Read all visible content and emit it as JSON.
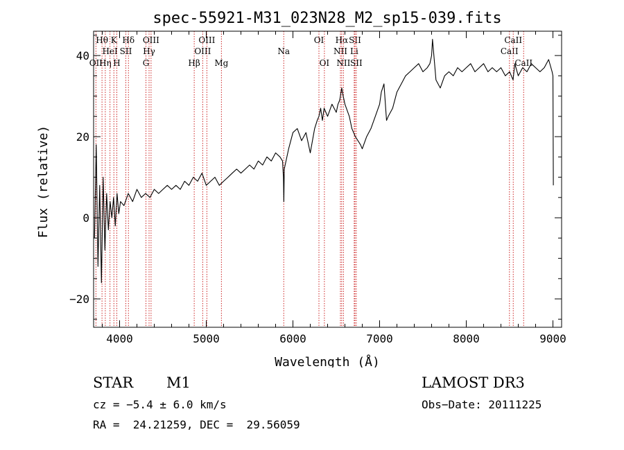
{
  "chart_data": {
    "type": "line",
    "title": "spec-55921-M31_023N28_M2_sp15-039.fits",
    "xlabel": "Wavelength (Å)",
    "ylabel": "Flux (relative)",
    "xlim": [
      3700,
      9100
    ],
    "ylim": [
      -27,
      46
    ],
    "xticks": [
      4000,
      5000,
      6000,
      7000,
      8000,
      9000
    ],
    "yticks": [
      -20,
      0,
      20,
      40
    ],
    "xminor_step": 200,
    "yminor_step": 5,
    "grid": false,
    "series": [
      {
        "name": "spectrum",
        "color": "#000000",
        "x": [
          3710,
          3730,
          3750,
          3770,
          3790,
          3810,
          3830,
          3850,
          3870,
          3890,
          3910,
          3930,
          3950,
          3970,
          3990,
          4010,
          4050,
          4100,
          4150,
          4200,
          4250,
          4300,
          4350,
          4400,
          4450,
          4500,
          4550,
          4600,
          4650,
          4700,
          4750,
          4800,
          4850,
          4900,
          4950,
          5000,
          5050,
          5100,
          5150,
          5200,
          5250,
          5300,
          5350,
          5400,
          5450,
          5500,
          5550,
          5600,
          5650,
          5700,
          5750,
          5800,
          5850,
          5880,
          5890,
          5895,
          5900,
          5920,
          5950,
          6000,
          6050,
          6100,
          6150,
          6200,
          6250,
          6280,
          6300,
          6320,
          6340,
          6360,
          6400,
          6450,
          6500,
          6520,
          6540,
          6563,
          6580,
          6600,
          6650,
          6680,
          6700,
          6720,
          6750,
          6780,
          6800,
          6850,
          6900,
          6950,
          7000,
          7020,
          7050,
          7080,
          7100,
          7150,
          7200,
          7250,
          7300,
          7350,
          7400,
          7450,
          7500,
          7550,
          7580,
          7600,
          7610,
          7630,
          7650,
          7700,
          7750,
          7800,
          7850,
          7900,
          7950,
          8000,
          8050,
          8100,
          8150,
          8200,
          8250,
          8300,
          8350,
          8400,
          8450,
          8500,
          8540,
          8560,
          8600,
          8650,
          8700,
          8750,
          8800,
          8850,
          8900,
          8950,
          8990,
          9000,
          9005
        ],
        "y": [
          -5,
          18,
          -12,
          8,
          -16,
          10,
          -8,
          6,
          -3,
          4,
          0,
          5,
          -2,
          6,
          1,
          4,
          3,
          6,
          4,
          7,
          5,
          6,
          5,
          7,
          6,
          7,
          8,
          7,
          8,
          7,
          9,
          8,
          10,
          9,
          11,
          8,
          9,
          10,
          8,
          9,
          10,
          11,
          12,
          11,
          12,
          13,
          12,
          14,
          13,
          15,
          14,
          16,
          15,
          14,
          10,
          4,
          12,
          14,
          17,
          21,
          22,
          19,
          21,
          16,
          22,
          24,
          25,
          27,
          24,
          27,
          25,
          28,
          26,
          28,
          29,
          32,
          30,
          28,
          25,
          22,
          21,
          20,
          19,
          18,
          17,
          20,
          22,
          25,
          28,
          31,
          33,
          24,
          25,
          27,
          31,
          33,
          35,
          36,
          37,
          38,
          36,
          37,
          38,
          40,
          44,
          39,
          34,
          32,
          35,
          36,
          35,
          37,
          36,
          37,
          38,
          36,
          37,
          38,
          36,
          37,
          36,
          37,
          35,
          36,
          34,
          38,
          35,
          37,
          36,
          38,
          37,
          36,
          37,
          39,
          36,
          35,
          8
        ]
      }
    ],
    "emission_lines": [
      {
        "label": "OII",
        "wavelength": 3727,
        "row": 3
      },
      {
        "label": "Hθ",
        "wavelength": 3797,
        "row": 1
      },
      {
        "label": "Hη",
        "wavelength": 3835,
        "row": 3
      },
      {
        "label": "HeI",
        "wavelength": 3889,
        "row": 2
      },
      {
        "label": "K",
        "wavelength": 3934,
        "row": 1
      },
      {
        "label": "H",
        "wavelength": 3968,
        "row": 3
      },
      {
        "label": "SII",
        "wavelength": 4072,
        "row": 2
      },
      {
        "label": "Hδ",
        "wavelength": 4102,
        "row": 1
      },
      {
        "label": "G",
        "wavelength": 4304,
        "row": 3
      },
      {
        "label": "Hγ",
        "wavelength": 4340,
        "row": 2
      },
      {
        "label": "OIII",
        "wavelength": 4363,
        "row": 1
      },
      {
        "label": "Hβ",
        "wavelength": 4861,
        "row": 3
      },
      {
        "label": "OIII",
        "wavelength": 4959,
        "row": 2
      },
      {
        "label": "OIII",
        "wavelength": 5007,
        "row": 1
      },
      {
        "label": "Mg",
        "wavelength": 5175,
        "row": 3
      },
      {
        "label": "Na",
        "wavelength": 5894,
        "row": 2
      },
      {
        "label": "OI",
        "wavelength": 6300,
        "row": 1
      },
      {
        "label": "OI",
        "wavelength": 6363,
        "row": 3
      },
      {
        "label": "NII",
        "wavelength": 6548,
        "row": 2
      },
      {
        "label": "Hα",
        "wavelength": 6563,
        "row": 1
      },
      {
        "label": "NII",
        "wavelength": 6583,
        "row": 3
      },
      {
        "label": "Li",
        "wavelength": 6707,
        "row": 2
      },
      {
        "label": "SII",
        "wavelength": 6716,
        "row": 1
      },
      {
        "label": "SII",
        "wavelength": 6731,
        "row": 3
      },
      {
        "label": "CaII",
        "wavelength": 8498,
        "row": 2
      },
      {
        "label": "CaII",
        "wavelength": 8542,
        "row": 1
      },
      {
        "label": "CaII",
        "wavelength": 8662,
        "row": 3
      }
    ]
  },
  "info": {
    "object_class": "STAR",
    "subclass": "M1",
    "survey": "LAMOST DR3",
    "redshift_text": "cz = −5.4 ± 6.0 km/s",
    "obs_date_text": "Obs−Date: 20111225",
    "coords_text": "RA =  24.21259, DEC =  29.56059"
  },
  "colors": {
    "line_marker": "#cc2222",
    "spectrum": "#000000",
    "axis": "#000000"
  }
}
